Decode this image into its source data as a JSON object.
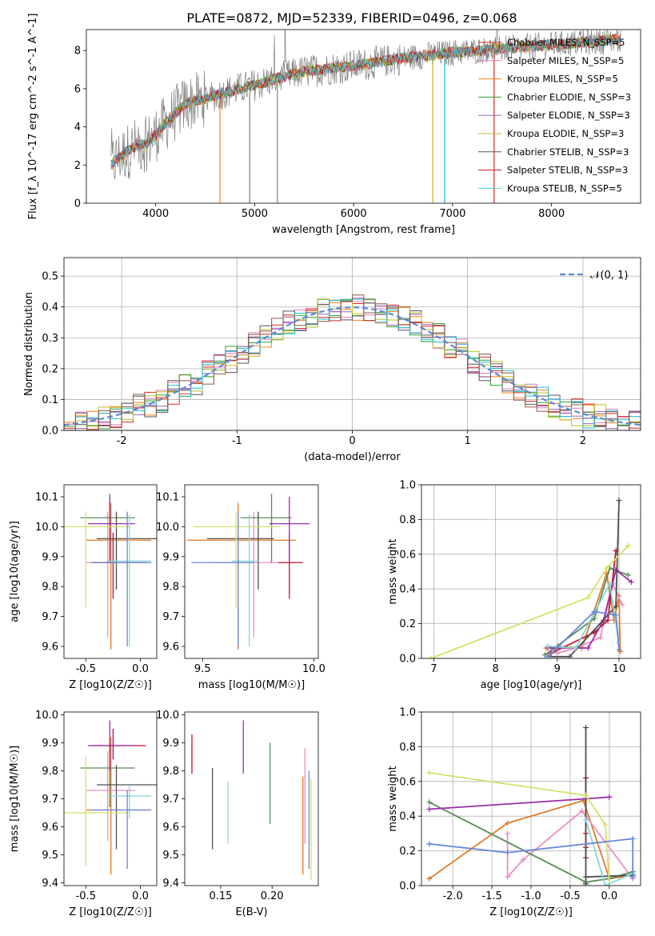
{
  "figure_title": "PLATE=0872, MJD=52339, FIBERID=0496, z=0.068",
  "model_colors": [
    "#ff7f0e",
    "#e377c2",
    "#2ca02c",
    "#d62728",
    "#9467bd",
    "#8c564b",
    "#bcbd22",
    "#7f7f7f",
    "#17becf"
  ],
  "chart_data": [
    {
      "id": "spectrum",
      "type": "line",
      "title": "PLATE=0872, MJD=52339, FIBERID=0496, z=0.068",
      "xlabel": "wavelength [Angstrom, rest frame]",
      "ylabel": "Flux [f_λ 10^-17 erg cm^-2 s^-1 A^-1]",
      "xlim": [
        3300,
        8900
      ],
      "ylim": [
        0,
        9.1
      ],
      "xticks": [
        4000,
        5000,
        6000,
        7000,
        8000
      ],
      "yticks": [
        0,
        2,
        4,
        6,
        8
      ],
      "grid": false,
      "legend_location": "top-right",
      "continuum_points": [
        [
          3550,
          2.0
        ],
        [
          3650,
          2.5
        ],
        [
          3800,
          3.0
        ],
        [
          3900,
          3.1
        ],
        [
          4000,
          3.6
        ],
        [
          4100,
          4.2
        ],
        [
          4300,
          5.2
        ],
        [
          4500,
          5.5
        ],
        [
          4700,
          5.8
        ],
        [
          5000,
          6.2
        ],
        [
          5200,
          6.5
        ],
        [
          5500,
          6.9
        ],
        [
          6000,
          7.2
        ],
        [
          6500,
          7.6
        ],
        [
          7000,
          7.9
        ],
        [
          7500,
          8.1
        ],
        [
          8000,
          8.3
        ],
        [
          8500,
          8.5
        ],
        [
          8700,
          8.6
        ]
      ],
      "series": [
        {
          "name": "Chabrier MILES, N_SSP=5"
        },
        {
          "name": "Salpeter MILES, N_SSP=5"
        },
        {
          "name": "Kroupa MILES, N_SSP=5"
        },
        {
          "name": "Chabrier ELODIE, N_SSP=3"
        },
        {
          "name": "Salpeter ELODIE, N_SSP=3"
        },
        {
          "name": "Kroupa ELODIE, N_SSP=3"
        },
        {
          "name": "Chabrier STELIB, N_SSP=3"
        },
        {
          "name": "Salpeter STELIB, N_SSP=3"
        },
        {
          "name": "Kroupa STELIB, N_SSP=5"
        }
      ]
    },
    {
      "id": "residuals",
      "type": "bar",
      "xlabel": "(data-model)/error",
      "ylabel": "Normed distribution",
      "xlim": [
        -2.5,
        2.5
      ],
      "ylim": [
        0,
        0.56
      ],
      "xticks": [
        -2,
        -1,
        0,
        1,
        2
      ],
      "yticks": [
        0.0,
        0.1,
        0.2,
        0.3,
        0.4,
        0.5
      ],
      "grid": true,
      "legend_location": "top-right",
      "reference_curve": "𝒩(0, 1)",
      "bin_width": 0.1
    },
    {
      "id": "age_vs_Z",
      "type": "scatter",
      "xlabel": "Z [log10(Z/Z☉)]",
      "ylabel": "age  [log10(age/yr)]",
      "xlim": [
        -0.7,
        0.15
      ],
      "ylim": [
        9.56,
        10.14
      ],
      "xticks": [
        -0.5,
        0.0
      ],
      "yticks": [
        9.6,
        9.7,
        9.8,
        9.9,
        10.0,
        10.1
      ]
    },
    {
      "id": "age_vs_mass",
      "type": "scatter",
      "xlabel": "mass [log10(M/M☉)]",
      "ylabel": "",
      "xlim": [
        9.42,
        10.02
      ],
      "ylim": [
        9.56,
        10.14
      ],
      "xticks": [
        9.5,
        10.0
      ],
      "yticks": [
        9.6,
        9.7,
        9.8,
        9.9,
        10.0,
        10.1
      ]
    },
    {
      "id": "weight_vs_age",
      "type": "line",
      "xlabel": "age  [log10(age/yr)]",
      "ylabel": "mass weight",
      "xlim": [
        6.8,
        10.35
      ],
      "ylim": [
        0,
        1
      ],
      "xticks": [
        7,
        8,
        9,
        10
      ],
      "yticks": [
        0.0,
        0.2,
        0.4,
        0.6,
        0.8,
        1.0
      ],
      "grid": true
    },
    {
      "id": "mass_vs_Z",
      "type": "scatter",
      "xlabel": "Z [log10(Z/Z☉)]",
      "ylabel": "mass [log10(M/M☉)]",
      "xlim": [
        -0.7,
        0.15
      ],
      "ylim": [
        9.39,
        10.01
      ],
      "xticks": [
        -0.5,
        0.0
      ],
      "yticks": [
        9.4,
        9.5,
        9.6,
        9.7,
        9.8,
        9.9,
        10.0
      ]
    },
    {
      "id": "mass_vs_ebv",
      "type": "scatter",
      "xlabel": "E(B-V)",
      "ylabel": "",
      "xlim": [
        0.115,
        0.245
      ],
      "ylim": [
        9.39,
        10.01
      ],
      "xticks": [
        0.15,
        0.2
      ],
      "xtick_labels": [
        "0.15",
        "0.20"
      ],
      "yticks": [
        9.4,
        9.5,
        9.6,
        9.7,
        9.8,
        9.9,
        10.0
      ]
    },
    {
      "id": "weight_vs_Z",
      "type": "line",
      "xlabel": "Z [log10(Z/Z☉)]",
      "ylabel": "mass weight",
      "xlim": [
        -2.4,
        0.4
      ],
      "ylim": [
        0,
        1
      ],
      "xticks": [
        -2.0,
        -1.5,
        -1.0,
        -0.5,
        0.0
      ],
      "yticks": [
        0.0,
        0.2,
        0.4,
        0.6,
        0.8,
        1.0
      ],
      "grid": true
    }
  ],
  "models": [
    {
      "color": "#e07b27",
      "Z": -0.27,
      "Zlo": -0.5,
      "Zhi": 0.1,
      "age": 9.955,
      "agelo": 9.59,
      "agehi": 10.08,
      "mass": 9.66,
      "mlo": 9.43,
      "mhi": 9.92,
      "ebv": 0.23,
      "ebvlo": 9.43,
      "ebvhi": 9.78,
      "w_age": [
        [
          8.82,
          0.06
        ],
        [
          9.0,
          0.07
        ],
        [
          9.4,
          0.06
        ],
        [
          9.8,
          0.49
        ],
        [
          9.92,
          0.22
        ],
        [
          10.0,
          0.36
        ],
        [
          10.02,
          0.04
        ]
      ],
      "w_Z": [
        [
          -2.3,
          0.04
        ],
        [
          -1.3,
          0.36
        ],
        [
          -0.33,
          0.49
        ],
        [
          0.0,
          0.04
        ],
        [
          0.3,
          0.06
        ]
      ]
    },
    {
      "color": "#e88fc3",
      "Z": -0.3,
      "Zlo": -0.5,
      "Zhi": -0.05,
      "age": 9.88,
      "agelo": 9.63,
      "agehi": 10.05,
      "mass": 9.73,
      "mlo": 9.55,
      "mhi": 9.87,
      "ebv": 0.232,
      "ebvlo": 9.54,
      "ebvhi": 9.88,
      "w_age": [
        [
          8.9,
          0.06
        ],
        [
          9.0,
          0.03
        ],
        [
          9.3,
          0.06
        ],
        [
          9.7,
          0.12
        ],
        [
          9.9,
          0.43
        ],
        [
          10.05,
          0.31
        ]
      ],
      "w_Z": [
        [
          -1.3,
          0.3
        ],
        [
          -1.3,
          0.05
        ],
        [
          -1.1,
          0.15
        ],
        [
          -0.35,
          0.43
        ],
        [
          0.3,
          0.04
        ]
      ]
    },
    {
      "color": "#5b8c5a",
      "Z": -0.28,
      "Zlo": -0.55,
      "Zhi": -0.05,
      "age": 10.03,
      "agelo": 9.88,
      "agehi": 10.11,
      "mass": 9.81,
      "mlo": 9.67,
      "mhi": 9.9,
      "ebv": 0.198,
      "ebvlo": 9.61,
      "ebvhi": 9.9,
      "w_age": [
        [
          8.8,
          0.02
        ],
        [
          9.6,
          0.23
        ],
        [
          9.85,
          0.52
        ],
        [
          10.15,
          0.48
        ]
      ],
      "w_Z": [
        [
          -2.3,
          0.48
        ],
        [
          -0.3,
          0.02
        ],
        [
          0.0,
          0.04
        ],
        [
          0.3,
          0.08
        ]
      ]
    },
    {
      "color": "#c0142a",
      "Z": -0.25,
      "Zlo": -0.45,
      "Zhi": 0.05,
      "age": 9.88,
      "agelo": 9.76,
      "agehi": 9.98,
      "mass": 9.89,
      "mlo": 9.84,
      "mhi": 9.95,
      "ebv": 0.122,
      "ebvlo": 9.79,
      "ebvhi": 9.93,
      "w_age": [
        [
          8.9,
          0.03
        ],
        [
          9.6,
          0.15
        ],
        [
          9.82,
          0.22
        ],
        [
          9.95,
          0.62
        ]
      ],
      "w_Z": [
        [
          -0.3,
          0.16
        ],
        [
          -0.3,
          0.62
        ],
        [
          -0.3,
          0.22
        ],
        [
          -0.3,
          0.3
        ]
      ]
    },
    {
      "color": "#9b2ca8",
      "Z": -0.28,
      "Zlo": -0.48,
      "Zhi": -0.05,
      "age": 10.01,
      "agelo": 9.88,
      "agehi": 10.1,
      "mass": 9.89,
      "mlo": 9.8,
      "mhi": 9.98,
      "ebv": 0.172,
      "ebvlo": 9.79,
      "ebvhi": 9.98,
      "w_age": [
        [
          8.85,
          0.06
        ],
        [
          9.5,
          0.06
        ],
        [
          9.75,
          0.22
        ],
        [
          9.95,
          0.51
        ],
        [
          10.2,
          0.44
        ]
      ],
      "w_Z": [
        [
          -2.3,
          0.44
        ],
        [
          -0.3,
          0.5
        ],
        [
          0.0,
          0.51
        ]
      ]
    },
    {
      "color": "#4f4f4f",
      "Z": -0.22,
      "Zlo": -0.4,
      "Zhi": 0.15,
      "age": 9.96,
      "agelo": 9.79,
      "agehi": 10.05,
      "mass": 9.75,
      "mlo": 9.52,
      "mhi": 9.82,
      "ebv": 0.142,
      "ebvlo": 9.52,
      "ebvhi": 9.81,
      "w_age": [
        [
          8.85,
          0.01
        ],
        [
          9.2,
          0.01
        ],
        [
          9.95,
          0.3
        ],
        [
          10.0,
          0.91
        ]
      ],
      "w_Z": [
        [
          -0.3,
          0.01
        ],
        [
          -0.3,
          0.91
        ],
        [
          -0.3,
          0.05
        ],
        [
          0.3,
          0.06
        ]
      ]
    },
    {
      "color": "#d7e06a",
      "Z": -0.5,
      "Zlo": -0.85,
      "Zhi": -0.1,
      "age": 10.0,
      "agelo": 9.73,
      "agehi": 10.05,
      "mass": 9.65,
      "mlo": 9.46,
      "mhi": 9.85,
      "ebv": 0.238,
      "ebvlo": 9.41,
      "ebvhi": 9.77,
      "w_age": [
        [
          6.95,
          0.0
        ],
        [
          9.5,
          0.35
        ],
        [
          9.8,
          0.52
        ],
        [
          10.15,
          0.65
        ]
      ],
      "w_Z": [
        [
          -2.3,
          0.65
        ],
        [
          -0.3,
          0.52
        ],
        [
          -0.05,
          0.35
        ],
        [
          0.0,
          0.0
        ]
      ]
    },
    {
      "color": "#84d7de",
      "Z": -0.1,
      "Zlo": -0.3,
      "Zhi": 0.1,
      "age": 9.885,
      "agelo": 9.6,
      "agehi": 10.04,
      "mass": 9.71,
      "mlo": 9.63,
      "mhi": 9.75,
      "ebv": 0.157,
      "ebvlo": 9.54,
      "ebvhi": 9.76,
      "w_age": [
        [
          8.85,
          0.07
        ],
        [
          9.3,
          0.06
        ],
        [
          9.85,
          0.43
        ],
        [
          10.0,
          0.09
        ]
      ],
      "w_Z": [
        [
          -0.3,
          0.38
        ],
        [
          -0.05,
          0.0
        ],
        [
          0.3,
          0.07
        ]
      ]
    },
    {
      "color": "#6787d8",
      "Z": -0.12,
      "Zlo": -0.45,
      "Zhi": 0.1,
      "age": 9.88,
      "agelo": 9.6,
      "agehi": 10.05,
      "mass": 9.66,
      "mlo": 9.45,
      "mhi": 9.73,
      "ebv": 0.236,
      "ebvlo": 9.45,
      "ebvhi": 9.8,
      "w_age": [
        [
          8.85,
          0.01
        ],
        [
          9.6,
          0.27
        ],
        [
          9.95,
          0.25
        ],
        [
          10.0,
          0.05
        ]
      ],
      "w_Z": [
        [
          -2.3,
          0.24
        ],
        [
          -1.3,
          0.19
        ],
        [
          0.3,
          0.27
        ],
        [
          0.3,
          0.05
        ]
      ]
    }
  ]
}
